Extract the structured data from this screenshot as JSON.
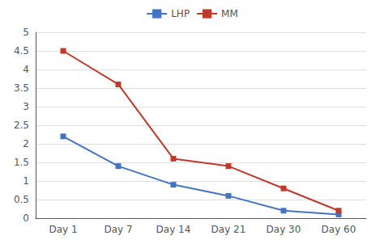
{
  "chart_data": {
    "type": "line",
    "categories": [
      "Day 1",
      "Day 7",
      "Day 14",
      "Day 21",
      "Day 30",
      "Day 60"
    ],
    "series": [
      {
        "name": "LHP",
        "color": "#4472C4",
        "values": [
          2.2,
          1.4,
          0.9,
          0.6,
          0.2,
          0.1
        ]
      },
      {
        "name": "MM",
        "color": "#C0392B",
        "values": [
          4.5,
          3.6,
          1.6,
          1.4,
          0.8,
          0.2
        ]
      }
    ],
    "ylim": [
      0,
      5
    ],
    "yticks": [
      0,
      0.5,
      1,
      1.5,
      2,
      2.5,
      3,
      3.5,
      4,
      4.5,
      5
    ],
    "grid": true,
    "legend": "top",
    "marker": "square"
  }
}
